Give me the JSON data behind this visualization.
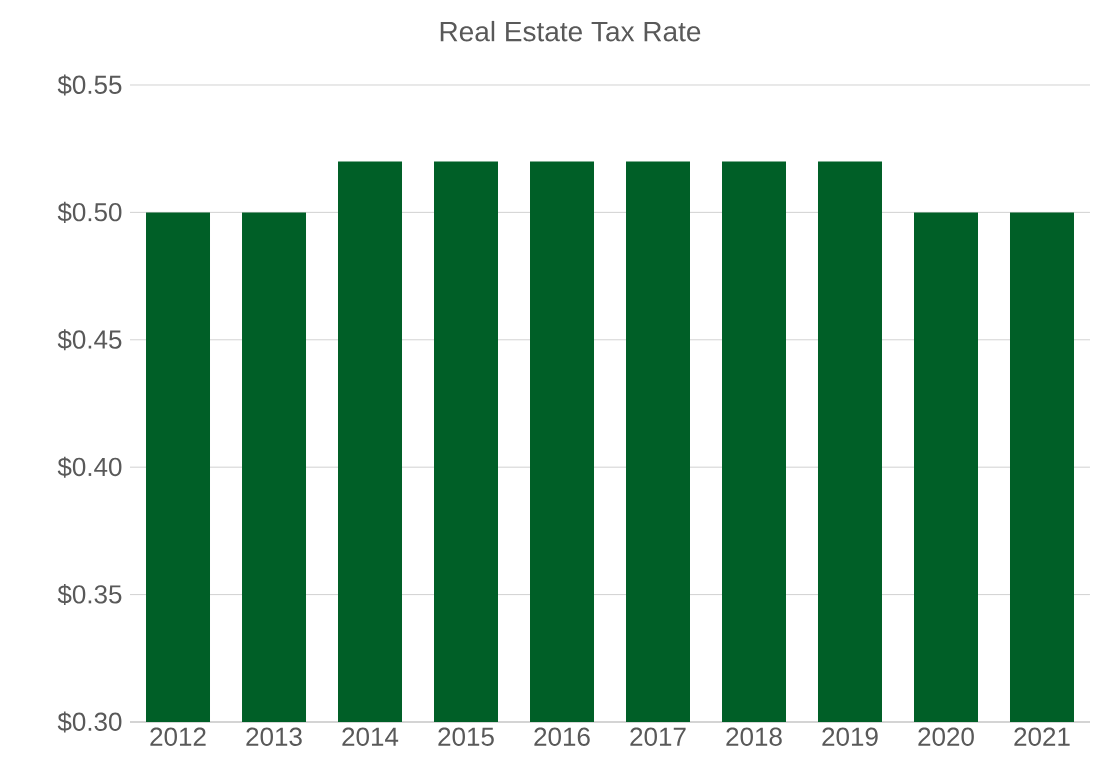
{
  "chart_data": {
    "type": "bar",
    "title": "Real Estate Tax Rate",
    "categories": [
      "2012",
      "2013",
      "2014",
      "2015",
      "2016",
      "2017",
      "2018",
      "2019",
      "2020",
      "2021"
    ],
    "values": [
      0.5,
      0.5,
      0.52,
      0.52,
      0.52,
      0.52,
      0.52,
      0.52,
      0.5,
      0.5
    ],
    "color": "#005f27",
    "ylim": [
      0.3,
      0.55
    ],
    "yticks": [
      {
        "value": 0.3,
        "label": "$0.30"
      },
      {
        "value": 0.35,
        "label": "$0.35"
      },
      {
        "value": 0.4,
        "label": "$0.40"
      },
      {
        "value": 0.45,
        "label": "$0.45"
      },
      {
        "value": 0.5,
        "label": "$0.50"
      },
      {
        "value": 0.55,
        "label": "$0.55"
      }
    ],
    "grid": "y"
  }
}
